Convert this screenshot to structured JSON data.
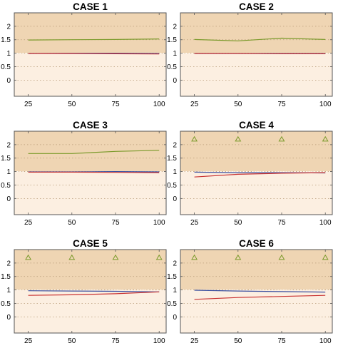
{
  "chart_data": [
    {
      "type": "line",
      "title": "CASE 1",
      "x": [
        25,
        50,
        75,
        100
      ],
      "xticks": [
        25,
        50,
        75,
        100
      ],
      "yticks": [
        0,
        0.5,
        1,
        1.5,
        2
      ],
      "xlim": [
        17,
        104
      ],
      "ylim": [
        -0.6,
        2.5
      ],
      "grid": "horizontal dotted",
      "bands": [
        {
          "from": 1,
          "to": 2.5,
          "color": "#efd5b3"
        },
        {
          "from": -0.6,
          "to": 1,
          "color": "#fcefe1"
        }
      ],
      "series": [
        {
          "color": "#7a9a2a",
          "values": [
            1.49,
            1.5,
            1.51,
            1.53
          ],
          "markers": false
        },
        {
          "color": "#3a4fa0",
          "values": [
            0.99,
            1.0,
            1.0,
            0.99
          ],
          "markers": false
        },
        {
          "color": "#c83232",
          "values": [
            0.99,
            0.99,
            0.98,
            0.97
          ],
          "markers": false
        }
      ]
    },
    {
      "type": "line",
      "title": "CASE 2",
      "x": [
        25,
        50,
        75,
        100
      ],
      "xticks": [
        25,
        50,
        75,
        100
      ],
      "yticks": [
        0,
        0.5,
        1,
        1.5,
        2
      ],
      "xlim": [
        17,
        104
      ],
      "ylim": [
        -0.6,
        2.5
      ],
      "grid": "horizontal dotted",
      "bands": [
        {
          "from": 1,
          "to": 2.5,
          "color": "#efd5b3"
        },
        {
          "from": -0.6,
          "to": 1,
          "color": "#fcefe1"
        }
      ],
      "series": [
        {
          "color": "#7a9a2a",
          "values": [
            1.51,
            1.46,
            1.56,
            1.51
          ],
          "markers": false
        },
        {
          "color": "#3a4fa0",
          "values": [
            0.99,
            0.99,
            0.99,
            0.99
          ],
          "markers": false
        },
        {
          "color": "#c83232",
          "values": [
            0.99,
            0.99,
            0.98,
            0.98
          ],
          "markers": false
        }
      ]
    },
    {
      "type": "line",
      "title": "CASE 3",
      "x": [
        25,
        50,
        75,
        100
      ],
      "xticks": [
        25,
        50,
        75,
        100
      ],
      "yticks": [
        0,
        0.5,
        1,
        1.5,
        2
      ],
      "xlim": [
        17,
        104
      ],
      "ylim": [
        -0.6,
        2.5
      ],
      "grid": "horizontal dotted",
      "bands": [
        {
          "from": 1,
          "to": 2.5,
          "color": "#efd5b3"
        },
        {
          "from": -0.6,
          "to": 1,
          "color": "#fcefe1"
        }
      ],
      "series": [
        {
          "color": "#7a9a2a",
          "values": [
            1.67,
            1.67,
            1.75,
            1.79
          ],
          "markers": false
        },
        {
          "color": "#3a4fa0",
          "values": [
            0.99,
            0.99,
            1.0,
            0.99
          ],
          "markers": false
        },
        {
          "color": "#c83232",
          "values": [
            0.98,
            0.98,
            0.97,
            0.96
          ],
          "markers": false
        }
      ]
    },
    {
      "type": "line",
      "title": "CASE 4",
      "x": [
        25,
        50,
        75,
        100
      ],
      "xticks": [
        25,
        50,
        75,
        100
      ],
      "yticks": [
        0,
        0.5,
        1,
        1.5,
        2
      ],
      "xlim": [
        17,
        104
      ],
      "ylim": [
        -0.6,
        2.5
      ],
      "grid": "horizontal dotted",
      "bands": [
        {
          "from": 1,
          "to": 2.5,
          "color": "#efd5b3"
        },
        {
          "from": -0.6,
          "to": 1,
          "color": "#fcefe1"
        }
      ],
      "series": [
        {
          "color": "#7a9a2a",
          "values": [
            2.2,
            2.2,
            2.2,
            2.2
          ],
          "markers": true
        },
        {
          "color": "#3a4fa0",
          "values": [
            0.98,
            0.96,
            0.96,
            0.95
          ],
          "markers": false
        },
        {
          "color": "#c83232",
          "values": [
            0.8,
            0.9,
            0.94,
            0.96
          ],
          "markers": false
        }
      ]
    },
    {
      "type": "line",
      "title": "CASE 5",
      "x": [
        25,
        50,
        75,
        100
      ],
      "xticks": [
        25,
        50,
        75,
        100
      ],
      "yticks": [
        0,
        0.5,
        1,
        1.5,
        2
      ],
      "xlim": [
        17,
        104
      ],
      "ylim": [
        -0.6,
        2.5
      ],
      "grid": "horizontal dotted",
      "bands": [
        {
          "from": 1,
          "to": 2.5,
          "color": "#efd5b3"
        },
        {
          "from": -0.6,
          "to": 1,
          "color": "#fcefe1"
        }
      ],
      "series": [
        {
          "color": "#7a9a2a",
          "values": [
            2.2,
            2.2,
            2.2,
            2.2
          ],
          "markers": true
        },
        {
          "color": "#3a4fa0",
          "values": [
            0.97,
            0.96,
            0.95,
            0.93
          ],
          "markers": false
        },
        {
          "color": "#c83232",
          "values": [
            0.8,
            0.82,
            0.86,
            0.93
          ],
          "markers": false
        }
      ]
    },
    {
      "type": "line",
      "title": "CASE 6",
      "x": [
        25,
        50,
        75,
        100
      ],
      "xticks": [
        25,
        50,
        75,
        100
      ],
      "yticks": [
        0,
        0.5,
        1,
        1.5,
        2
      ],
      "xlim": [
        17,
        104
      ],
      "ylim": [
        -0.6,
        2.5
      ],
      "grid": "horizontal dotted",
      "bands": [
        {
          "from": 1,
          "to": 2.5,
          "color": "#efd5b3"
        },
        {
          "from": -0.6,
          "to": 1,
          "color": "#fcefe1"
        }
      ],
      "series": [
        {
          "color": "#7a9a2a",
          "values": [
            2.2,
            2.2,
            2.2,
            2.2
          ],
          "markers": true
        },
        {
          "color": "#3a4fa0",
          "values": [
            0.99,
            0.96,
            0.94,
            0.92
          ],
          "markers": false
        },
        {
          "color": "#c83232",
          "values": [
            0.65,
            0.72,
            0.76,
            0.8
          ],
          "markers": false
        }
      ]
    }
  ]
}
